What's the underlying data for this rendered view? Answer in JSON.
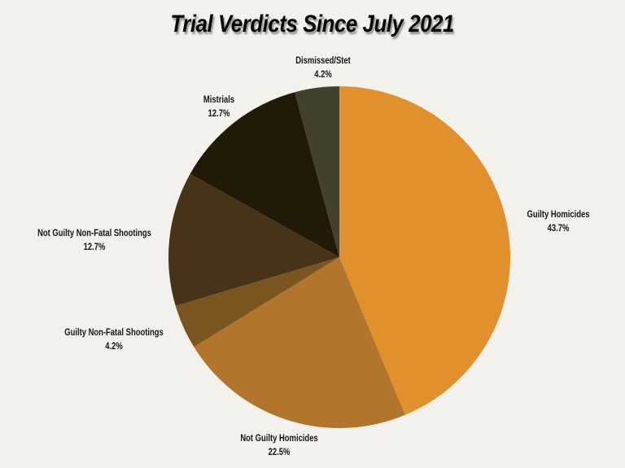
{
  "page": {
    "background_color": "#f3f1ec"
  },
  "chart_data": {
    "type": "pie",
    "title": "Trial Verdicts Since July 2021",
    "legend": "none",
    "label_position": "outside",
    "start_angle": "12-o-clock",
    "direction": "clockwise",
    "slices": [
      {
        "label": "Guilty Homicides",
        "value": 43.7,
        "percent_label": "43.7%",
        "color": "#e0912d"
      },
      {
        "label": "Not Guilty Homicides",
        "value": 22.5,
        "percent_label": "22.5%",
        "color": "#b1762b"
      },
      {
        "label": "Guilty Non-Fatal Shootings",
        "value": 4.2,
        "percent_label": "4.2%",
        "color": "#7a551f"
      },
      {
        "label": "Not Guilty Non-Fatal Shootings",
        "value": 12.7,
        "percent_label": "12.7%",
        "color": "#473418"
      },
      {
        "label": "Mistrials",
        "value": 12.7,
        "percent_label": "12.7%",
        "color": "#221a09"
      },
      {
        "label": "Dismissed/Stet",
        "value": 4.2,
        "percent_label": "4.2%",
        "color": "#44402e"
      }
    ]
  }
}
